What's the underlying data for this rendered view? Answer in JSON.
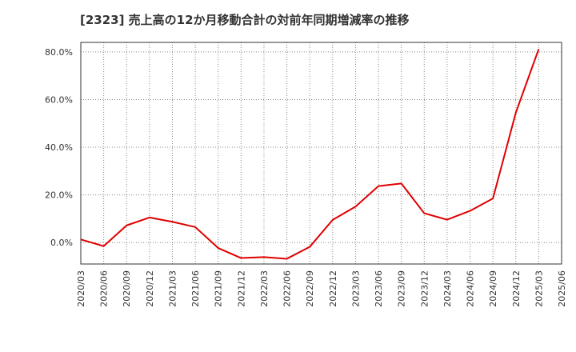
{
  "title": "[2323]  売上高の12か月移動合計の対前年同期増減率の推移",
  "chart_data": {
    "type": "line",
    "title": "[2323]  売上高の12か月移動合計の対前年同期増減率の推移",
    "xlabel": "",
    "ylabel": "",
    "x": [
      "2020/03",
      "2020/06",
      "2020/09",
      "2020/12",
      "2021/03",
      "2021/06",
      "2021/09",
      "2021/12",
      "2022/03",
      "2022/06",
      "2022/09",
      "2022/12",
      "2023/03",
      "2023/06",
      "2023/09",
      "2023/12",
      "2024/03",
      "2024/06",
      "2024/09",
      "2024/12",
      "2025/03",
      "2025/06"
    ],
    "x_tick_labels": [
      "2020/03",
      "2020/06",
      "2020/09",
      "2020/12",
      "2021/03",
      "2021/06",
      "2021/09",
      "2021/12",
      "2022/03",
      "2022/06",
      "2022/09",
      "2022/12",
      "2023/03",
      "2023/06",
      "2023/09",
      "2023/12",
      "2024/03",
      "2024/06",
      "2024/09",
      "2024/12",
      "2025/03",
      "2025/06"
    ],
    "series": [
      {
        "values": [
          1.3,
          -1.5,
          7.2,
          10.5,
          8.7,
          6.5,
          -2.3,
          -6.5,
          -6.1,
          -6.8,
          -1.8,
          9.5,
          15.1,
          23.7,
          24.8,
          12.3,
          9.6,
          13.3,
          18.5,
          54.5,
          81.2,
          null
        ],
        "color": "#e00000"
      }
    ],
    "ylim": [
      -9,
      84
    ],
    "y_ticks": [
      0,
      20,
      40,
      60,
      80
    ],
    "y_tick_labels": [
      "0.0%",
      "20.0%",
      "40.0%",
      "60.0%",
      "80.0%"
    ],
    "grid": true,
    "grid_color": "#888888",
    "line_color": "#e00000"
  }
}
